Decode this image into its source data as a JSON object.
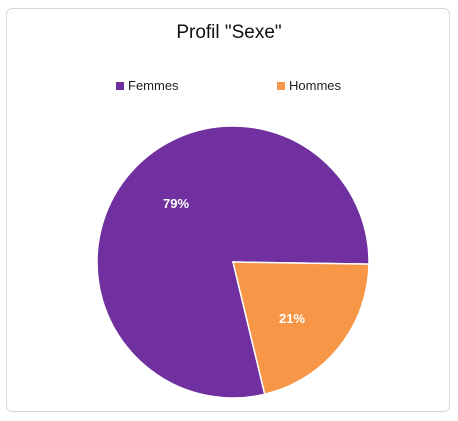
{
  "chart_data": {
    "type": "pie",
    "title": "Profil \"Sexe\"",
    "categories": [
      "Femmes",
      "Hommes"
    ],
    "values": [
      79,
      21
    ],
    "labels": [
      "79%",
      "21%"
    ],
    "colors": [
      "#7030a0",
      "#f79646"
    ],
    "label_color": "#ffffff",
    "legend_placement": "top"
  }
}
